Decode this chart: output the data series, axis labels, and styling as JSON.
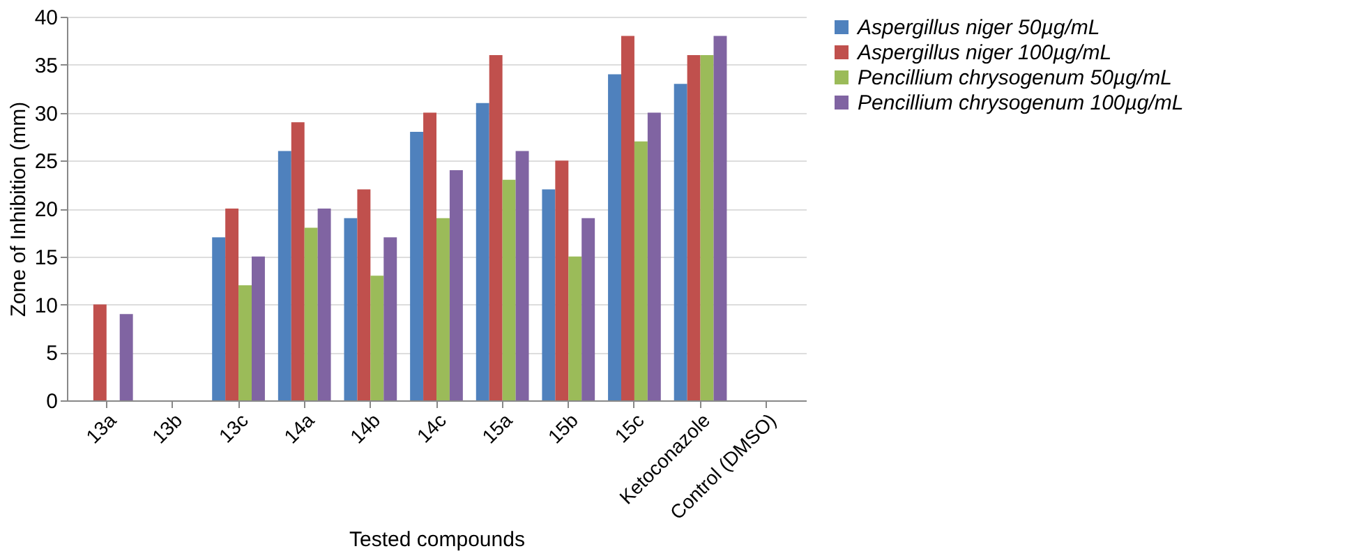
{
  "chart_data": {
    "type": "bar",
    "xlabel": "Tested compounds",
    "ylabel": "Zone of Inhibition (mm)",
    "categories": [
      "13a",
      "13b",
      "13c",
      "14a",
      "14b",
      "14c",
      "15a",
      "15b",
      "15c",
      "Ketoconazole",
      "Control (DMSO)"
    ],
    "series": [
      {
        "name": "Aspergillus niger 50µg/mL",
        "color": "#4f81bd",
        "values": [
          0,
          0,
          17,
          26,
          19,
          28,
          31,
          22,
          34,
          33,
          0
        ]
      },
      {
        "name": "Aspergillus niger 100µg/mL",
        "color": "#c0504d",
        "values": [
          10,
          0,
          20,
          29,
          22,
          30,
          36,
          25,
          38,
          36,
          0
        ]
      },
      {
        "name": "Pencillium chrysogenum 50µg/mL",
        "color": "#9bbb59",
        "values": [
          0,
          0,
          12,
          18,
          13,
          19,
          23,
          15,
          27,
          36,
          0
        ]
      },
      {
        "name": "Pencillium chrysogenum 100µg/mL",
        "color": "#8064a2",
        "values": [
          9,
          0,
          15,
          20,
          17,
          24,
          26,
          19,
          30,
          38,
          0
        ]
      }
    ],
    "ylim": [
      0,
      40
    ],
    "yticks": [
      0,
      5,
      10,
      15,
      20,
      25,
      30,
      35,
      40
    ],
    "grid": "y",
    "legend": "right"
  }
}
